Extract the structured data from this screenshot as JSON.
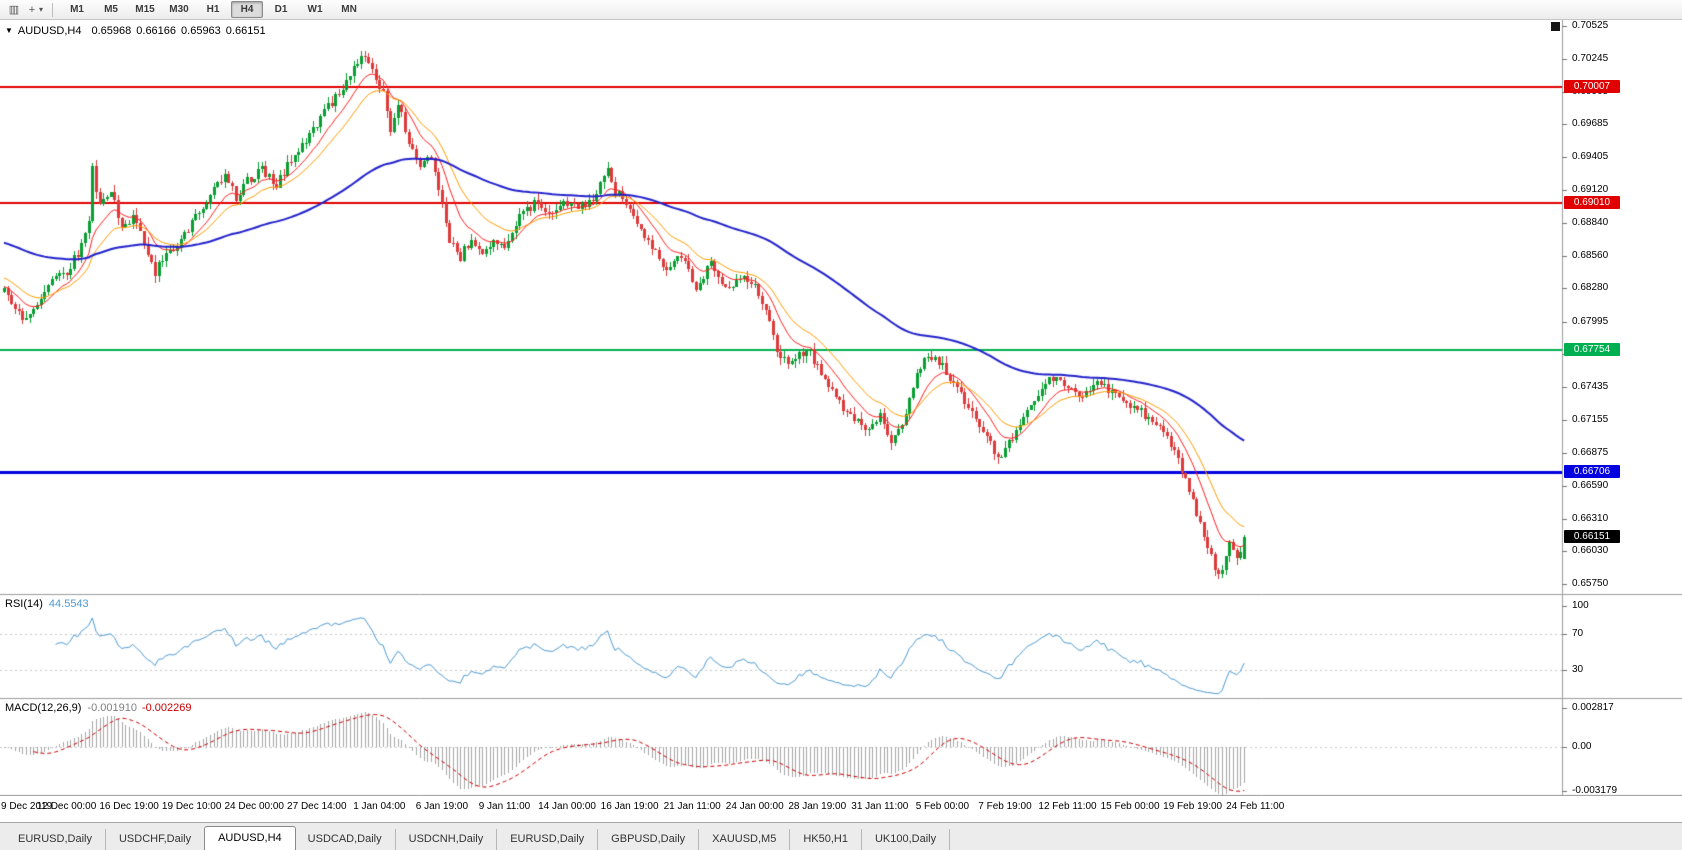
{
  "toolbar": {
    "chart_windows_icon": "▥",
    "cursor_mode_icon": "+",
    "dropdown_caret_icon": "▾",
    "timeframes": [
      "M1",
      "M5",
      "M15",
      "M30",
      "H1",
      "H4",
      "D1",
      "W1",
      "MN"
    ],
    "active_timeframe": "H4"
  },
  "chart_header": {
    "collapse_icon": "▼",
    "symbol_label": "AUDUSD,H4",
    "open": "0.65968",
    "high": "0.66166",
    "low": "0.65963",
    "close": "0.66151"
  },
  "price_axis": {
    "ticks": [
      "0.70525",
      "0.70245",
      "0.69965",
      "0.69685",
      "0.69405",
      "0.69120",
      "0.68840",
      "0.68560",
      "0.68280",
      "0.67995",
      "0.67715",
      "0.67435",
      "0.67155",
      "0.66875",
      "0.66590",
      "0.66310",
      "0.66030",
      "0.65750"
    ],
    "badges": [
      {
        "label": "0.70007",
        "price": 0.70007,
        "color": "#e00000"
      },
      {
        "label": "0.69010",
        "price": 0.6901,
        "color": "#e00000"
      },
      {
        "label": "0.67754",
        "price": 0.67754,
        "color": "#00b050"
      },
      {
        "label": "0.66706",
        "price": 0.66706,
        "color": "#0000e0"
      },
      {
        "label": "0.66151",
        "price": 0.66151,
        "color": "#000000"
      }
    ]
  },
  "indicators": {
    "rsi": {
      "label": "RSI(14)",
      "value": "44.5543",
      "period": 14,
      "levels": [
        70,
        30
      ],
      "axis_labels": [
        "100",
        "70",
        "30"
      ],
      "color": "#4f9bd3"
    },
    "macd": {
      "label": "MACD(12,26,9)",
      "main_value": "-0.001910",
      "signal_value": "-0.002269",
      "periods": {
        "fast": 12,
        "slow": 26,
        "signal": 9
      },
      "axis_labels": [
        "0.002817",
        "0.00",
        "-0.003179"
      ],
      "histogram_color": "#a6a6a6",
      "signal_color": "#cc0000"
    }
  },
  "time_axis": {
    "bars_per_label": 17,
    "labels": [
      "9 Dec 2019",
      "12 Dec 00:00",
      "16 Dec 19:00",
      "19 Dec 10:00",
      "24 Dec 00:00",
      "27 Dec 14:00",
      "1 Jan 04:00",
      "6 Jan 19:00",
      "9 Jan 11:00",
      "14 Jan 00:00",
      "16 Jan 19:00",
      "21 Jan 11:00",
      "24 Jan 00:00",
      "28 Jan 19:00",
      "31 Jan 11:00",
      "5 Feb 00:00",
      "7 Feb 19:00",
      "12 Feb 11:00",
      "15 Feb 00:00",
      "19 Feb 19:00",
      "24 Feb 11:00"
    ]
  },
  "tabs": [
    {
      "label": "EURUSD,Daily",
      "active": false
    },
    {
      "label": "USDCHF,Daily",
      "active": false
    },
    {
      "label": "AUDUSD,H4",
      "active": true
    },
    {
      "label": "USDCAD,Daily",
      "active": false
    },
    {
      "label": "USDCNH,Daily",
      "active": false
    },
    {
      "label": "EURUSD,Daily",
      "active": false
    },
    {
      "label": "GBPUSD,Daily",
      "active": false
    },
    {
      "label": "XAUUSD,M5",
      "active": false
    },
    {
      "label": "HK50,H1",
      "active": false
    },
    {
      "label": "UK100,Daily",
      "active": false
    }
  ],
  "chart_data": {
    "type": "candlestick",
    "symbol": "AUDUSD",
    "timeframe": "H4",
    "bars_total": 338,
    "up_color": "#0a9e33",
    "down_color": "#dd3b3b",
    "price_range": {
      "axis_top": 0.7056,
      "axis_bottom": 0.65665
    },
    "last_bar": {
      "open": 0.65968,
      "high": 0.66166,
      "low": 0.65963,
      "close": 0.66151
    },
    "horizontal_lines": [
      {
        "price": 0.70007,
        "color": "#e00000",
        "width": 2
      },
      {
        "price": 0.6901,
        "color": "#e00000",
        "width": 2
      },
      {
        "price": 0.67754,
        "color": "#00b050",
        "width": 2
      },
      {
        "price": 0.66706,
        "color": "#0000e0",
        "width": 3
      }
    ],
    "moving_averages": [
      {
        "color": "#ff2020",
        "alpha": 0.18,
        "seed": 0.683,
        "width": 1
      },
      {
        "color": "#ff9c00",
        "alpha": 0.1,
        "seed": 0.6838,
        "width": 1
      },
      {
        "color": "#2222cc",
        "alpha": 0.022,
        "seed": 0.6868,
        "width": 2
      }
    ],
    "price_anchors": [
      [
        0,
        0.6826
      ],
      [
        3,
        0.6808
      ],
      [
        6,
        0.68
      ],
      [
        9,
        0.6817
      ],
      [
        13,
        0.6833
      ],
      [
        17,
        0.6842
      ],
      [
        20,
        0.6858
      ],
      [
        23,
        0.6885
      ],
      [
        24,
        0.693
      ],
      [
        26,
        0.6898
      ],
      [
        29,
        0.6912
      ],
      [
        32,
        0.6878
      ],
      [
        35,
        0.689
      ],
      [
        38,
        0.6868
      ],
      [
        41,
        0.6842
      ],
      [
        44,
        0.6858
      ],
      [
        48,
        0.6868
      ],
      [
        52,
        0.6888
      ],
      [
        56,
        0.6905
      ],
      [
        60,
        0.6928
      ],
      [
        63,
        0.6907
      ],
      [
        66,
        0.6921
      ],
      [
        70,
        0.6929
      ],
      [
        74,
        0.6916
      ],
      [
        78,
        0.6938
      ],
      [
        82,
        0.6955
      ],
      [
        86,
        0.6975
      ],
      [
        90,
        0.6992
      ],
      [
        94,
        0.7012
      ],
      [
        97,
        0.703
      ],
      [
        100,
        0.7012
      ],
      [
        103,
        0.6995
      ],
      [
        105,
        0.696
      ],
      [
        107,
        0.6988
      ],
      [
        110,
        0.695
      ],
      [
        113,
        0.6935
      ],
      [
        116,
        0.694
      ],
      [
        119,
        0.6902
      ],
      [
        121,
        0.6868
      ],
      [
        124,
        0.6855
      ],
      [
        127,
        0.6872
      ],
      [
        130,
        0.6856
      ],
      [
        133,
        0.687
      ],
      [
        136,
        0.6862
      ],
      [
        140,
        0.6892
      ],
      [
        144,
        0.69
      ],
      [
        148,
        0.6893
      ],
      [
        152,
        0.6902
      ],
      [
        156,
        0.6896
      ],
      [
        160,
        0.6905
      ],
      [
        164,
        0.6928
      ],
      [
        166,
        0.691
      ],
      [
        169,
        0.6902
      ],
      [
        172,
        0.688
      ],
      [
        176,
        0.6862
      ],
      [
        180,
        0.6843
      ],
      [
        184,
        0.6856
      ],
      [
        188,
        0.683
      ],
      [
        192,
        0.685
      ],
      [
        196,
        0.6826
      ],
      [
        200,
        0.6836
      ],
      [
        204,
        0.683
      ],
      [
        207,
        0.6812
      ],
      [
        210,
        0.6775
      ],
      [
        214,
        0.6762
      ],
      [
        218,
        0.6778
      ],
      [
        222,
        0.6756
      ],
      [
        226,
        0.6733
      ],
      [
        230,
        0.6718
      ],
      [
        234,
        0.6708
      ],
      [
        238,
        0.6718
      ],
      [
        241,
        0.6698
      ],
      [
        244,
        0.6712
      ],
      [
        248,
        0.6752
      ],
      [
        251,
        0.6772
      ],
      [
        255,
        0.6762
      ],
      [
        259,
        0.6742
      ],
      [
        263,
        0.6722
      ],
      [
        267,
        0.67
      ],
      [
        270,
        0.6682
      ],
      [
        273,
        0.6696
      ],
      [
        277,
        0.6718
      ],
      [
        281,
        0.6738
      ],
      [
        285,
        0.6752
      ],
      [
        289,
        0.6744
      ],
      [
        293,
        0.6734
      ],
      [
        297,
        0.6745
      ],
      [
        301,
        0.674
      ],
      [
        305,
        0.673
      ],
      [
        309,
        0.6722
      ],
      [
        313,
        0.671
      ],
      [
        317,
        0.6695
      ],
      [
        320,
        0.6672
      ],
      [
        323,
        0.6648
      ],
      [
        326,
        0.6615
      ],
      [
        329,
        0.659
      ],
      [
        331,
        0.6584
      ],
      [
        333,
        0.6612
      ],
      [
        335,
        0.6596
      ],
      [
        337,
        0.66151
      ]
    ]
  }
}
